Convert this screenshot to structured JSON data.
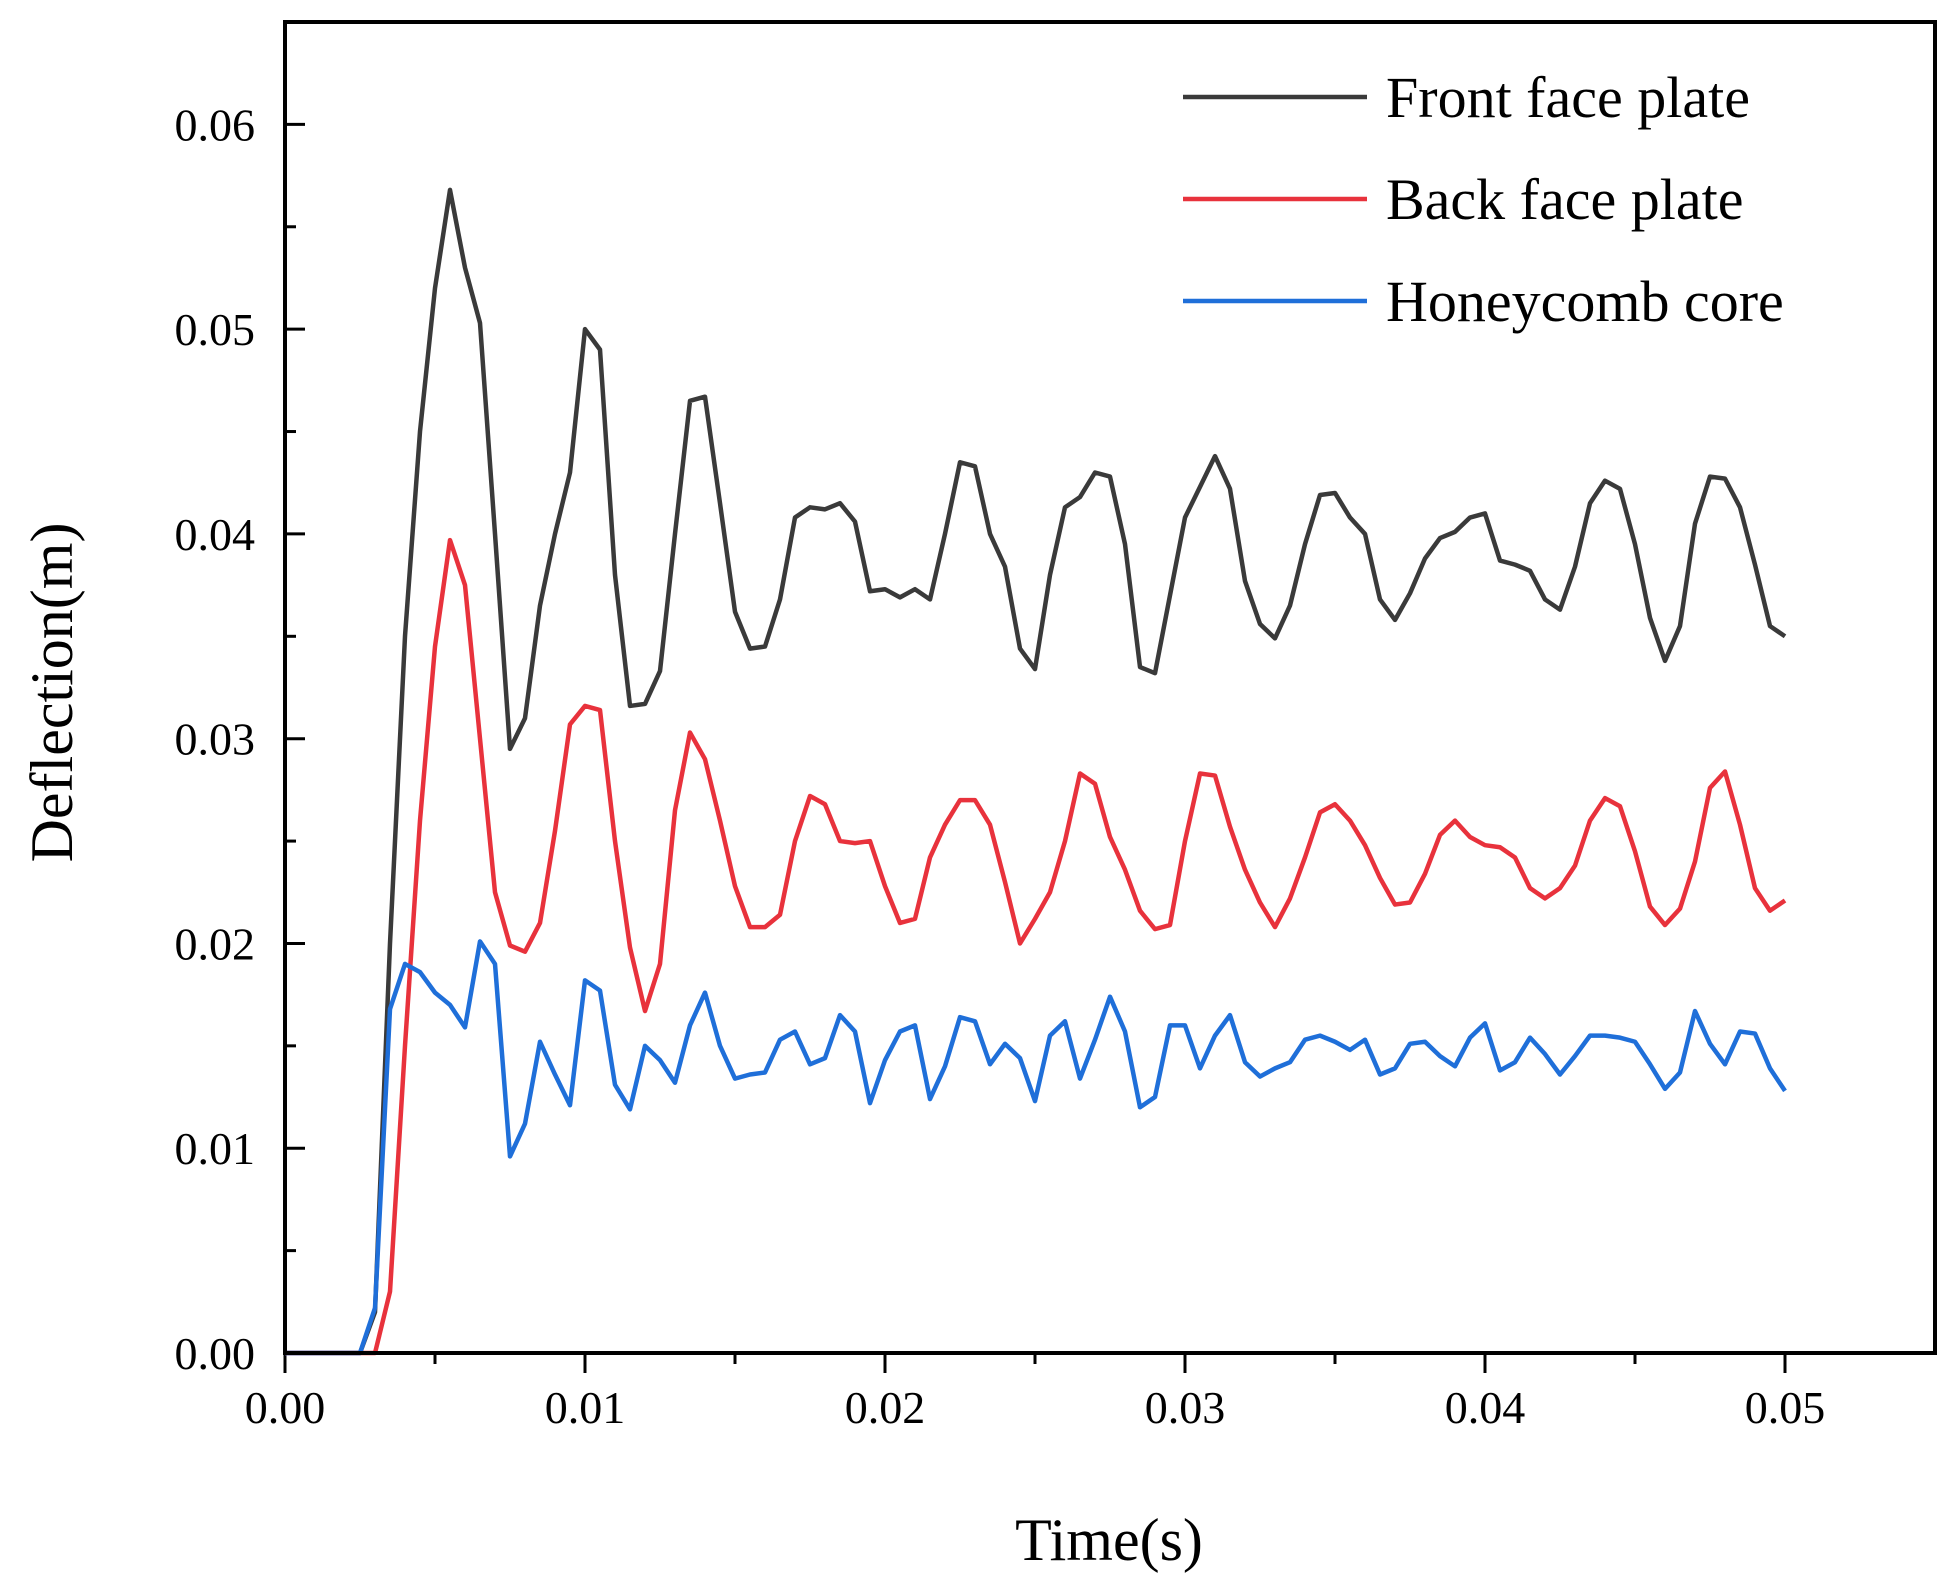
{
  "chart_data": {
    "type": "line",
    "title": "",
    "xlabel": "Time(s)",
    "ylabel": "Deflection(m)",
    "xlim": [
      0,
      0.055
    ],
    "ylim": [
      0,
      0.065
    ],
    "x_ticks": [
      0,
      0.01,
      0.02,
      0.03,
      0.04,
      0.05
    ],
    "x_tick_labels": [
      "0.00",
      "0.01",
      "0.02",
      "0.03",
      "0.04",
      "0.05"
    ],
    "y_ticks": [
      0,
      0.01,
      0.02,
      0.03,
      0.04,
      0.05,
      0.06
    ],
    "y_tick_labels": [
      "0.00",
      "0.01",
      "0.02",
      "0.03",
      "0.04",
      "0.05",
      "0.06"
    ],
    "grid": false,
    "legend_position": "top-right",
    "series": [
      {
        "name": "Front face plate",
        "color": "#3a3a3a",
        "x": [
          0,
          0.0005,
          0.001,
          0.0015,
          0.002,
          0.0025,
          0.003,
          0.0035,
          0.004,
          0.0045,
          0.005,
          0.0055,
          0.006,
          0.0065,
          0.007,
          0.0075,
          0.008,
          0.0085,
          0.009,
          0.0095,
          0.01,
          0.0105,
          0.011,
          0.0115,
          0.012,
          0.0125,
          0.013,
          0.0135,
          0.014,
          0.0145,
          0.015,
          0.0155,
          0.016,
          0.0165,
          0.017,
          0.0175,
          0.018,
          0.0185,
          0.019,
          0.0195,
          0.02,
          0.0205,
          0.021,
          0.0215,
          0.022,
          0.0225,
          0.023,
          0.0235,
          0.024,
          0.0245,
          0.025,
          0.0255,
          0.026,
          0.0265,
          0.027,
          0.0275,
          0.028,
          0.0285,
          0.029,
          0.0295,
          0.03,
          0.0305,
          0.031,
          0.0315,
          0.032,
          0.0325,
          0.033,
          0.0335,
          0.034,
          0.0345,
          0.035,
          0.0355,
          0.036,
          0.0365,
          0.037,
          0.0375,
          0.038,
          0.0385,
          0.039,
          0.0395,
          0.04,
          0.0405,
          0.041,
          0.0415,
          0.042,
          0.0425,
          0.043,
          0.0435,
          0.044,
          0.0445,
          0.045,
          0.0455,
          0.046,
          0.0465,
          0.047,
          0.0475,
          0.048,
          0.0485,
          0.049,
          0.0495,
          0.05
        ],
        "y": [
          0,
          0,
          0,
          0,
          0,
          0,
          0.002,
          0.02,
          0.035,
          0.045,
          0.052,
          0.0568,
          0.053,
          0.0503,
          0.04,
          0.0295,
          0.031,
          0.0365,
          0.04,
          0.043,
          0.05,
          0.049,
          0.038,
          0.0316,
          0.0317,
          0.0333,
          0.04,
          0.0465,
          0.0467,
          0.0415,
          0.0362,
          0.0344,
          0.0345,
          0.0368,
          0.0408,
          0.0413,
          0.0412,
          0.0415,
          0.0406,
          0.0372,
          0.0373,
          0.0369,
          0.0373,
          0.0368,
          0.04,
          0.0435,
          0.0433,
          0.04,
          0.0384,
          0.0344,
          0.0334,
          0.038,
          0.0413,
          0.0418,
          0.043,
          0.0428,
          0.0395,
          0.0335,
          0.0332,
          0.037,
          0.0408,
          0.0423,
          0.0438,
          0.0422,
          0.0377,
          0.0356,
          0.0349,
          0.0365,
          0.0395,
          0.0419,
          0.042,
          0.0408,
          0.04,
          0.0368,
          0.0358,
          0.0371,
          0.0388,
          0.0398,
          0.0401,
          0.0408,
          0.041,
          0.0387,
          0.0385,
          0.0382,
          0.0368,
          0.0363,
          0.0384,
          0.0415,
          0.0426,
          0.0422,
          0.0395,
          0.0359,
          0.0338,
          0.0355,
          0.0405,
          0.0428,
          0.0427,
          0.0413,
          0.0385,
          0.0355,
          0.035
        ]
      },
      {
        "name": "Back face plate",
        "color": "#e8323c",
        "x": [
          0,
          0.0005,
          0.001,
          0.0015,
          0.002,
          0.0025,
          0.003,
          0.0035,
          0.004,
          0.0045,
          0.005,
          0.0055,
          0.006,
          0.0065,
          0.007,
          0.0075,
          0.008,
          0.0085,
          0.009,
          0.0095,
          0.01,
          0.0105,
          0.011,
          0.0115,
          0.012,
          0.0125,
          0.013,
          0.0135,
          0.014,
          0.0145,
          0.015,
          0.0155,
          0.016,
          0.0165,
          0.017,
          0.0175,
          0.018,
          0.0185,
          0.019,
          0.0195,
          0.02,
          0.0205,
          0.021,
          0.0215,
          0.022,
          0.0225,
          0.023,
          0.0235,
          0.024,
          0.0245,
          0.025,
          0.0255,
          0.026,
          0.0265,
          0.027,
          0.0275,
          0.028,
          0.0285,
          0.029,
          0.0295,
          0.03,
          0.0305,
          0.031,
          0.0315,
          0.032,
          0.0325,
          0.033,
          0.0335,
          0.034,
          0.0345,
          0.035,
          0.0355,
          0.036,
          0.0365,
          0.037,
          0.0375,
          0.038,
          0.0385,
          0.039,
          0.0395,
          0.04,
          0.0405,
          0.041,
          0.0415,
          0.042,
          0.0425,
          0.043,
          0.0435,
          0.044,
          0.0445,
          0.045,
          0.0455,
          0.046,
          0.0465,
          0.047,
          0.0475,
          0.048,
          0.0485,
          0.049,
          0.0495,
          0.05
        ],
        "y": [
          0,
          0,
          0,
          0,
          0,
          0,
          0,
          0.003,
          0.015,
          0.026,
          0.0345,
          0.0397,
          0.0375,
          0.03,
          0.0225,
          0.0199,
          0.0196,
          0.021,
          0.0255,
          0.0307,
          0.0316,
          0.0314,
          0.025,
          0.0198,
          0.0167,
          0.019,
          0.0265,
          0.0303,
          0.029,
          0.026,
          0.0228,
          0.0208,
          0.0208,
          0.0214,
          0.025,
          0.0272,
          0.0268,
          0.025,
          0.0249,
          0.025,
          0.0228,
          0.021,
          0.0212,
          0.0242,
          0.0258,
          0.027,
          0.027,
          0.0258,
          0.023,
          0.02,
          0.0212,
          0.0225,
          0.025,
          0.0283,
          0.0278,
          0.0252,
          0.0236,
          0.0216,
          0.0207,
          0.0209,
          0.025,
          0.0283,
          0.0282,
          0.0257,
          0.0236,
          0.022,
          0.0208,
          0.0222,
          0.0242,
          0.0264,
          0.0268,
          0.026,
          0.0248,
          0.0232,
          0.0219,
          0.022,
          0.0234,
          0.0253,
          0.026,
          0.0252,
          0.0248,
          0.0247,
          0.0242,
          0.0227,
          0.0222,
          0.0227,
          0.0238,
          0.026,
          0.0271,
          0.0267,
          0.0245,
          0.0218,
          0.0209,
          0.0217,
          0.024,
          0.0276,
          0.0284,
          0.0258,
          0.0227,
          0.0216,
          0.0221
        ]
      },
      {
        "name": "Honeycomb core",
        "color": "#1f6fd9",
        "x": [
          0,
          0.0005,
          0.001,
          0.0015,
          0.002,
          0.0025,
          0.003,
          0.0035,
          0.004,
          0.0045,
          0.005,
          0.0055,
          0.006,
          0.0065,
          0.007,
          0.0075,
          0.008,
          0.0085,
          0.009,
          0.0095,
          0.01,
          0.0105,
          0.011,
          0.0115,
          0.012,
          0.0125,
          0.013,
          0.0135,
          0.014,
          0.0145,
          0.015,
          0.0155,
          0.016,
          0.0165,
          0.017,
          0.0175,
          0.018,
          0.0185,
          0.019,
          0.0195,
          0.02,
          0.0205,
          0.021,
          0.0215,
          0.022,
          0.0225,
          0.023,
          0.0235,
          0.024,
          0.0245,
          0.025,
          0.0255,
          0.026,
          0.0265,
          0.027,
          0.0275,
          0.028,
          0.0285,
          0.029,
          0.0295,
          0.03,
          0.0305,
          0.031,
          0.0315,
          0.032,
          0.0325,
          0.033,
          0.0335,
          0.034,
          0.0345,
          0.035,
          0.0355,
          0.036,
          0.0365,
          0.037,
          0.0375,
          0.038,
          0.0385,
          0.039,
          0.0395,
          0.04,
          0.0405,
          0.041,
          0.0415,
          0.042,
          0.0425,
          0.043,
          0.0435,
          0.044,
          0.0445,
          0.045,
          0.0455,
          0.046,
          0.0465,
          0.047,
          0.0475,
          0.048,
          0.0485,
          0.049,
          0.0495,
          0.05
        ],
        "y": [
          0,
          0,
          0,
          0,
          0,
          0,
          0.0022,
          0.0168,
          0.019,
          0.0186,
          0.0176,
          0.017,
          0.0159,
          0.0201,
          0.019,
          0.0096,
          0.0112,
          0.0152,
          0.0136,
          0.0121,
          0.0182,
          0.0177,
          0.0131,
          0.0119,
          0.015,
          0.0143,
          0.0132,
          0.016,
          0.0176,
          0.015,
          0.0134,
          0.0136,
          0.0137,
          0.0153,
          0.0157,
          0.0141,
          0.0144,
          0.0165,
          0.0157,
          0.0122,
          0.0143,
          0.0157,
          0.016,
          0.0124,
          0.014,
          0.0164,
          0.0162,
          0.0141,
          0.0151,
          0.0144,
          0.0123,
          0.0155,
          0.0162,
          0.0134,
          0.0153,
          0.0174,
          0.0157,
          0.012,
          0.0125,
          0.016,
          0.016,
          0.0139,
          0.0155,
          0.0165,
          0.0142,
          0.0135,
          0.0139,
          0.0142,
          0.0153,
          0.0155,
          0.0152,
          0.0148,
          0.0153,
          0.0136,
          0.0139,
          0.0151,
          0.0152,
          0.0145,
          0.014,
          0.0154,
          0.0161,
          0.0138,
          0.0142,
          0.0154,
          0.0146,
          0.0136,
          0.0145,
          0.0155,
          0.0155,
          0.0154,
          0.0152,
          0.0141,
          0.0129,
          0.0137,
          0.0167,
          0.0151,
          0.0141,
          0.0157,
          0.0156,
          0.0139,
          0.0128
        ]
      }
    ]
  }
}
